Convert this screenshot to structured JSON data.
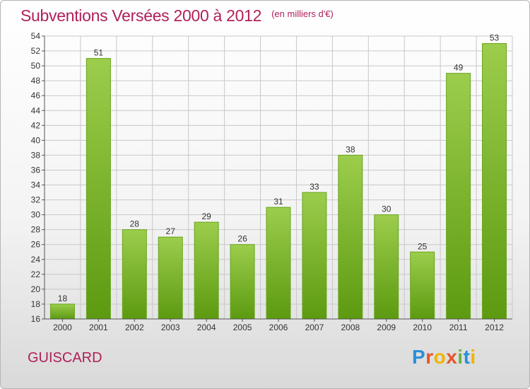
{
  "header": {
    "title": "Subventions Versées 2000 à 2012",
    "subtitle": "(en milliers d'€)"
  },
  "footer": {
    "town": "GUISCARD",
    "logo_text": "Proxiti"
  },
  "colors": {
    "title": "#b0205a",
    "bar_top": "#9ccd4c",
    "bar_bottom": "#5c9a10",
    "grid": "#c8c8c8"
  },
  "chart_data": {
    "type": "bar",
    "categories": [
      "2000",
      "2001",
      "2002",
      "2003",
      "2004",
      "2005",
      "2006",
      "2007",
      "2008",
      "2009",
      "2010",
      "2011",
      "2012"
    ],
    "values": [
      18,
      51,
      28,
      27,
      29,
      26,
      31,
      33,
      38,
      30,
      25,
      49,
      53
    ],
    "title": "Subventions Versées 2000 à 2012",
    "xlabel": "",
    "ylabel": "",
    "ylim": [
      16,
      54
    ],
    "yticks": [
      16,
      18,
      20,
      22,
      24,
      26,
      28,
      30,
      32,
      34,
      36,
      38,
      40,
      42,
      44,
      46,
      48,
      50,
      52,
      54
    ],
    "grid": true,
    "data_labels": true
  }
}
